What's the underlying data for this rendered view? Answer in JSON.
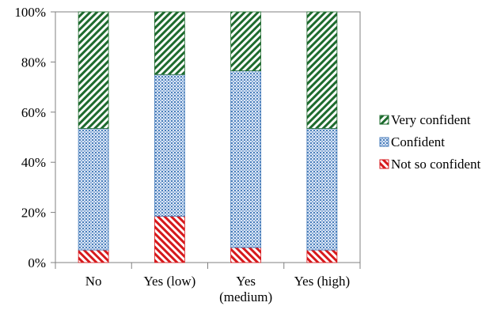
{
  "chart_data": {
    "type": "bar",
    "stacked": true,
    "percent": true,
    "categories": [
      "No",
      "Yes (low)",
      "Yes (medium)",
      "Yes (high)"
    ],
    "category_lines": [
      [
        "No"
      ],
      [
        "Yes (low)"
      ],
      [
        "Yes",
        "(medium)"
      ],
      [
        "Yes (high)"
      ]
    ],
    "series": [
      {
        "name": "Not so confident",
        "values": [
          5,
          18.5,
          6,
          5
        ],
        "color": "#d7191c",
        "pattern": "diagonal-hatch"
      },
      {
        "name": "Confident",
        "values": [
          48.5,
          56.5,
          70.5,
          48.5
        ],
        "color": "#4a7ebb",
        "pattern": "dotted-grid"
      },
      {
        "name": "Very confident",
        "values": [
          46.5,
          25,
          23.5,
          46.5
        ],
        "color": "#1e6b2e",
        "pattern": "diagonal-hatch"
      }
    ],
    "ylim": [
      0,
      100
    ],
    "yticks": [
      "0%",
      "20%",
      "40%",
      "60%",
      "80%",
      "100%"
    ],
    "legend_order": [
      "Very confident",
      "Confident",
      "Not so confident"
    ],
    "legend_position": "right",
    "grid": false,
    "title": "",
    "xlabel": "",
    "ylabel": ""
  }
}
